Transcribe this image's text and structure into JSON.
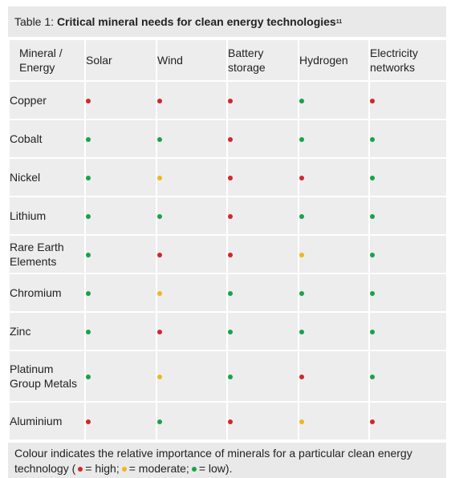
{
  "caption": {
    "prefix": "Table 1: ",
    "title": "Critical mineral needs for clean energy technologies",
    "footnote": "11"
  },
  "headers": [
    "Mineral / Energy",
    "Solar",
    "Wind",
    "Battery storage",
    "Hydrogen",
    "Electricity networks"
  ],
  "colors": {
    "high": "#d3262b",
    "moderate": "#f2b51c",
    "low": "#17a34a"
  },
  "rows": [
    {
      "mineral": "Copper",
      "values": [
        "high",
        "high",
        "high",
        "low",
        "high"
      ]
    },
    {
      "mineral": "Cobalt",
      "values": [
        "low",
        "low",
        "high",
        "low",
        "low"
      ]
    },
    {
      "mineral": "Nickel",
      "values": [
        "low",
        "moderate",
        "high",
        "high",
        "low"
      ]
    },
    {
      "mineral": "Lithium",
      "values": [
        "low",
        "low",
        "high",
        "low",
        "low"
      ]
    },
    {
      "mineral": "Rare Earth Elements",
      "values": [
        "low",
        "high",
        "high",
        "moderate",
        "low"
      ]
    },
    {
      "mineral": "Chromium",
      "values": [
        "low",
        "moderate",
        "low",
        "low",
        "low"
      ]
    },
    {
      "mineral": "Zinc",
      "values": [
        "low",
        "high",
        "low",
        "low",
        "low"
      ]
    },
    {
      "mineral": "Platinum Group Metals",
      "values": [
        "low",
        "moderate",
        "low",
        "high",
        "low"
      ]
    },
    {
      "mineral": "Aluminium",
      "values": [
        "high",
        "low",
        "high",
        "moderate",
        "high"
      ]
    }
  ],
  "footer": {
    "text_before": "Colour indicates the relative importance of minerals for a particular clean energy technology (",
    "high_label": "= high;",
    "moderate_label": "= moderate;",
    "low_label": "= low).",
    "high_color": "#d3262b",
    "moderate_color": "#f2b51c",
    "low_color": "#17a34a"
  }
}
